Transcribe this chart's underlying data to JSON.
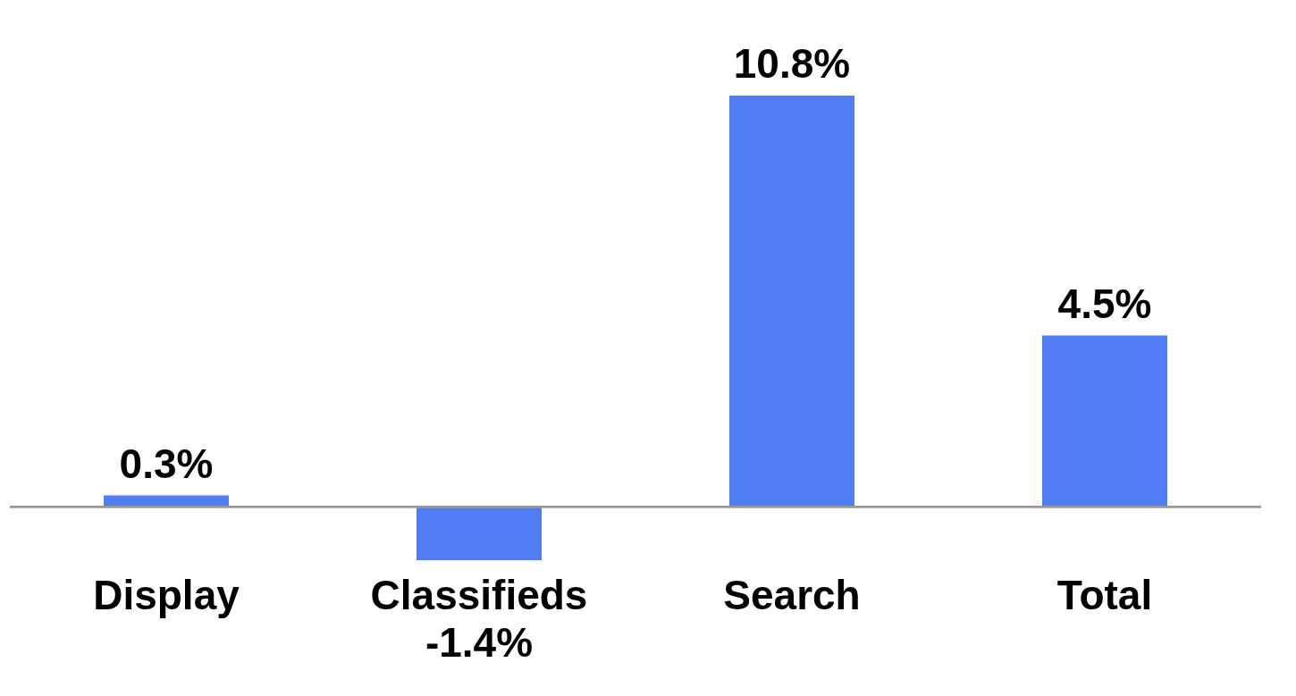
{
  "chart_data": {
    "type": "bar",
    "categories": [
      "Display",
      "Classifieds",
      "Search",
      "Total"
    ],
    "values": [
      0.3,
      -1.4,
      10.8,
      4.5
    ],
    "value_labels": [
      "0.3%",
      "-1.4%",
      "10.8%",
      "4.5%"
    ],
    "color": "#517df4",
    "grid": false
  }
}
